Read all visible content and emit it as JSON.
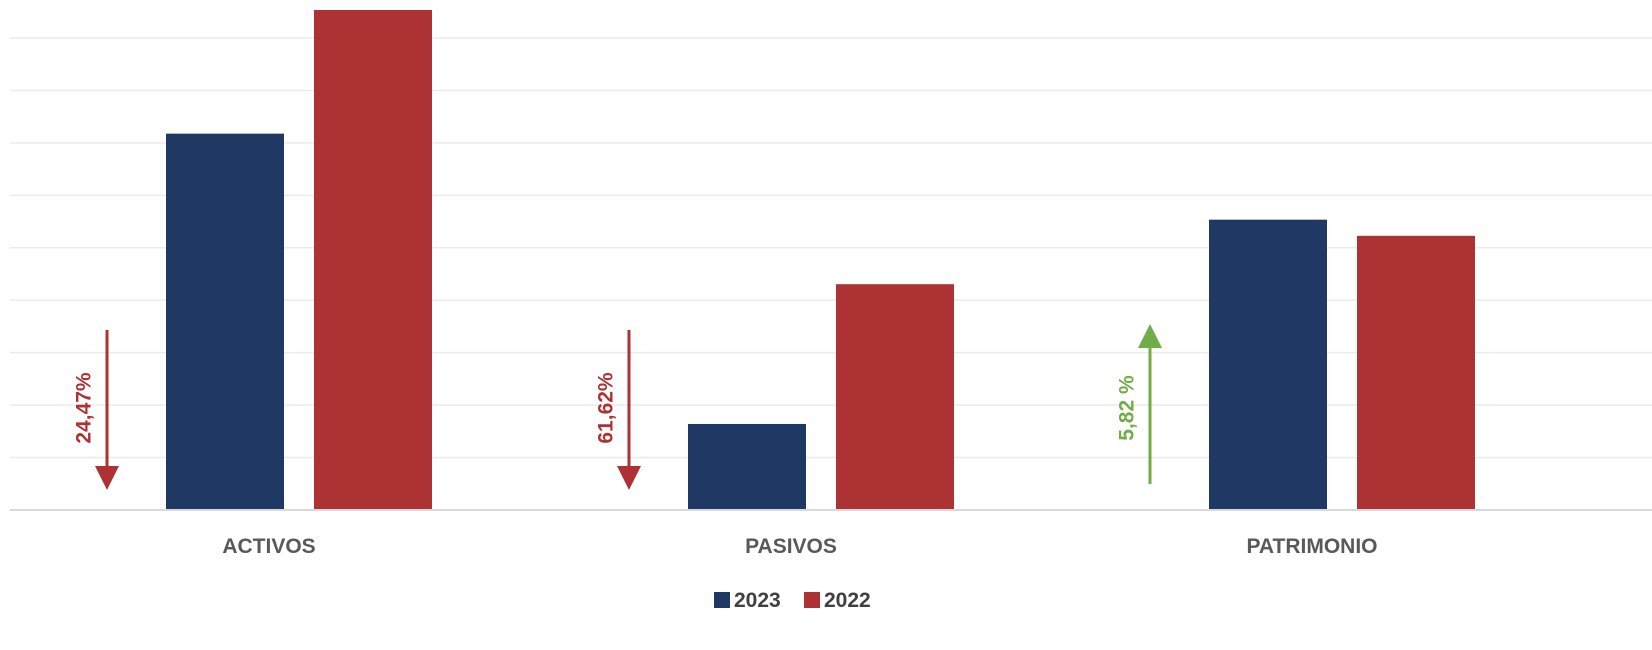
{
  "chart_data": {
    "type": "bar",
    "title": "",
    "xlabel": "",
    "ylabel": "",
    "categories": [
      "ACTIVOS",
      "PASIVOS",
      "PATRIMONIO"
    ],
    "series": [
      {
        "name": "2023",
        "color": "#203864",
        "values": [
          7.0,
          1.6,
          5.4
        ]
      },
      {
        "name": "2022",
        "color": "#AD3234",
        "values": [
          9.3,
          4.2,
          5.1
        ]
      }
    ],
    "ylim": [
      0,
      9.3
    ],
    "grid": true,
    "y_tick_labels_shown": false,
    "legend_position": "bottom",
    "annotations": [
      {
        "category": "ACTIVOS",
        "text": "24,47%",
        "direction": "down",
        "color": "#AD3234"
      },
      {
        "category": "PASIVOS",
        "text": "61,62%",
        "direction": "down",
        "color": "#AD3234"
      },
      {
        "category": "PATRIMONIO",
        "text": "5,82 %",
        "direction": "up",
        "color": "#70AD47"
      }
    ]
  }
}
